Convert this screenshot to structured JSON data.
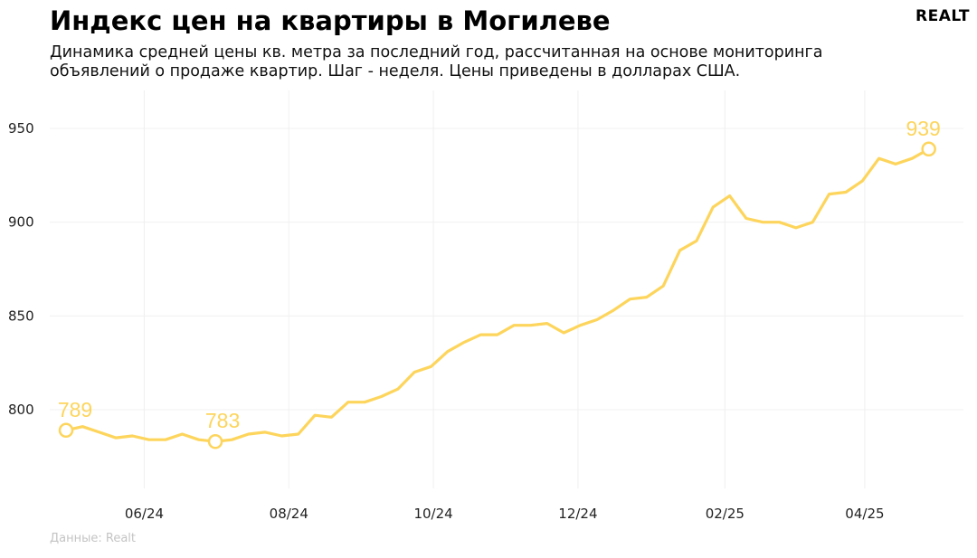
{
  "title": "Индекс цен на квартиры в Могилеве",
  "subtitle": "Динамика средней цены кв. метра за последний год, рассчитанная на основе мониторинга объявлений о продаже квартир. Шаг - неделя. Цены приведены в долларах США.",
  "logo": "REALT",
  "source": "Данные: Realt",
  "colors": {
    "line": "#fdd55c",
    "grid": "#f0f0f0"
  },
  "chart_data": {
    "type": "line",
    "xlabel": "",
    "ylabel": "",
    "ylim": [
      750,
      955
    ],
    "grid": true,
    "x_tick_labels": [
      "06/24",
      "08/24",
      "10/24",
      "12/24",
      "02/25",
      "04/25"
    ],
    "x_tick_dates": [
      "2024-06-01",
      "2024-08-01",
      "2024-10-01",
      "2024-12-01",
      "2025-02-01",
      "2025-04-01"
    ],
    "y_ticks": [
      800,
      850,
      900,
      950
    ],
    "x": [
      "2024-04-29",
      "2024-05-06",
      "2024-05-13",
      "2024-05-20",
      "2024-05-27",
      "2024-06-03",
      "2024-06-10",
      "2024-06-17",
      "2024-06-24",
      "2024-07-01",
      "2024-07-08",
      "2024-07-15",
      "2024-07-22",
      "2024-07-29",
      "2024-08-05",
      "2024-08-12",
      "2024-08-19",
      "2024-08-26",
      "2024-09-02",
      "2024-09-09",
      "2024-09-16",
      "2024-09-23",
      "2024-09-30",
      "2024-10-07",
      "2024-10-14",
      "2024-10-21",
      "2024-10-28",
      "2024-11-04",
      "2024-11-11",
      "2024-11-18",
      "2024-11-25",
      "2024-12-02",
      "2024-12-09",
      "2024-12-16",
      "2024-12-23",
      "2024-12-30",
      "2025-01-06",
      "2025-01-13",
      "2025-01-20",
      "2025-01-27",
      "2025-02-03",
      "2025-02-10",
      "2025-02-17",
      "2025-02-24",
      "2025-03-03",
      "2025-03-10",
      "2025-03-17",
      "2025-03-24",
      "2025-03-31",
      "2025-04-07",
      "2025-04-14",
      "2025-04-21",
      "2025-04-28",
      "2025-05-05",
      "2025-05-12"
    ],
    "series": [
      {
        "values": [
          789,
          791,
          788,
          785,
          786,
          784,
          784,
          787,
          784,
          783,
          784,
          787,
          788,
          786,
          787,
          797,
          796,
          804,
          804,
          807,
          811,
          820,
          823,
          831,
          836,
          840,
          840,
          845,
          845,
          846,
          841,
          845,
          848,
          853,
          859,
          860,
          866,
          885,
          890,
          908,
          914,
          902,
          900,
          900,
          897,
          900,
          915,
          916,
          922,
          934,
          931,
          934,
          939,
          939,
          939
        ]
      }
    ],
    "annotations": [
      {
        "label": "789",
        "index": 0
      },
      {
        "label": "783",
        "index": 9
      },
      {
        "label": "939",
        "index": 52
      }
    ]
  }
}
